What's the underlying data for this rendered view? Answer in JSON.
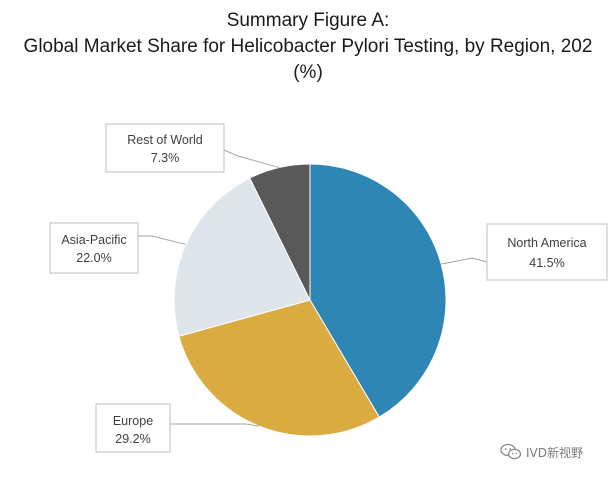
{
  "chart_data": {
    "type": "pie",
    "title": [
      "Summary Figure A:",
      "Global Market Share for Helicobacter Pylori Testing, by Region, 202",
      "(%)"
    ],
    "slices": [
      {
        "label": "North America",
        "value": 41.5,
        "value_label": "41.5%",
        "color": "#2e86b5"
      },
      {
        "label": "Europe",
        "value": 29.2,
        "value_label": "29.2%",
        "color": "#d9ab40"
      },
      {
        "label": "Asia-Pacific",
        "value": 22.0,
        "value_label": "22.0%",
        "color": "#dfe6eb"
      },
      {
        "label": "Rest of World",
        "value": 7.3,
        "value_label": "7.3%",
        "color": "#595959"
      }
    ],
    "start_angle_deg": 0,
    "direction": "clockwise",
    "labels": "callouts with leader lines"
  },
  "watermark": {
    "icon": "wechat-icon",
    "text": "IVD新视野"
  }
}
